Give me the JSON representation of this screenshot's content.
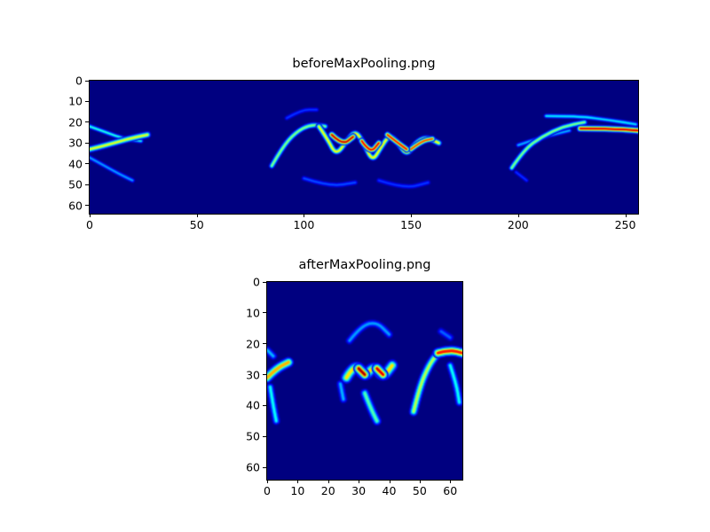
{
  "figure": {
    "background": "#ffffff",
    "text_color": "#000000",
    "axis_color": "#000000",
    "heatmap_min_color": "#000080"
  },
  "chart_data": [
    {
      "type": "heatmap",
      "title": "beforeMaxPooling.png",
      "colormap": "jet",
      "xlabel": "",
      "ylabel": "",
      "x_range": [
        0,
        256
      ],
      "y_range": [
        0,
        64
      ],
      "x_ticks": [
        0,
        50,
        100,
        150,
        200,
        250
      ],
      "y_ticks": [
        0,
        10,
        20,
        30,
        40,
        50,
        60
      ],
      "grid": false,
      "legend": "none",
      "strokes": [
        {
          "points": [
            [
              0,
              22
            ],
            [
              8,
              25
            ],
            [
              16,
              28
            ],
            [
              24,
              29
            ]
          ],
          "width": 1.8,
          "intensity": 0.4
        },
        {
          "points": [
            [
              0,
              33
            ],
            [
              8,
              31
            ],
            [
              18,
              28
            ],
            [
              27,
              26
            ]
          ],
          "width": 2.6,
          "intensity": 0.6
        },
        {
          "points": [
            [
              0,
              37
            ],
            [
              7,
              41
            ],
            [
              14,
              45
            ],
            [
              20,
              48
            ]
          ],
          "width": 1.8,
          "intensity": 0.28
        },
        {
          "points": [
            [
              92,
              18
            ],
            [
              99,
              14
            ],
            [
              106,
              14
            ]
          ],
          "width": 1.8,
          "intensity": 0.18
        },
        {
          "points": [
            [
              85,
              41
            ],
            [
              90,
              32
            ],
            [
              96,
              25
            ],
            [
              103,
              21
            ],
            [
              110,
              22
            ]
          ],
          "width": 2.2,
          "intensity": 0.5
        },
        {
          "points": [
            [
              107,
              22
            ],
            [
              111,
              28
            ],
            [
              115,
              36
            ],
            [
              120,
              29
            ],
            [
              124,
              24
            ],
            [
              128,
              30
            ],
            [
              132,
              39
            ],
            [
              136,
              32
            ],
            [
              140,
              26
            ],
            [
              144,
              30
            ],
            [
              148,
              36
            ],
            [
              152,
              30
            ],
            [
              157,
              27
            ],
            [
              163,
              30
            ]
          ],
          "width": 2.3,
          "intensity": 0.62
        },
        {
          "points": [
            [
              113,
              26
            ],
            [
              118,
              31
            ],
            [
              123,
              27
            ]
          ],
          "width": 2.5,
          "intensity": 0.92
        },
        {
          "points": [
            [
              127,
              29
            ],
            [
              131,
              35
            ],
            [
              135,
              30
            ]
          ],
          "width": 2.3,
          "intensity": 0.88
        },
        {
          "points": [
            [
              139,
              26
            ],
            [
              144,
              30
            ],
            [
              148,
              33
            ]
          ],
          "width": 2.3,
          "intensity": 0.85
        },
        {
          "points": [
            [
              150,
              33
            ],
            [
              155,
              29
            ],
            [
              160,
              28
            ]
          ],
          "width": 2.2,
          "intensity": 0.8
        },
        {
          "points": [
            [
              100,
              47
            ],
            [
              112,
              51
            ],
            [
              124,
              49
            ]
          ],
          "width": 2.0,
          "intensity": 0.2
        },
        {
          "points": [
            [
              135,
              48
            ],
            [
              147,
              52
            ],
            [
              158,
              49
            ]
          ],
          "width": 2.0,
          "intensity": 0.18
        },
        {
          "points": [
            [
              197,
              42
            ],
            [
              203,
              33
            ],
            [
              211,
              27
            ],
            [
              221,
              22
            ],
            [
              231,
              20
            ]
          ],
          "width": 2.2,
          "intensity": 0.5
        },
        {
          "points": [
            [
              213,
              17
            ],
            [
              228,
              17
            ],
            [
              243,
              19
            ],
            [
              255,
              21
            ]
          ],
          "width": 1.8,
          "intensity": 0.35
        },
        {
          "points": [
            [
              200,
              31
            ],
            [
              212,
              27
            ],
            [
              224,
              24
            ]
          ],
          "width": 1.8,
          "intensity": 0.3
        },
        {
          "points": [
            [
              229,
              23
            ],
            [
              242,
              23
            ],
            [
              256,
              24
            ]
          ],
          "width": 2.6,
          "intensity": 0.9
        },
        {
          "points": [
            [
              199,
              44
            ],
            [
              204,
              48
            ]
          ],
          "width": 1.6,
          "intensity": 0.18
        }
      ]
    },
    {
      "type": "heatmap",
      "title": "afterMaxPooling.png",
      "colormap": "jet",
      "xlabel": "",
      "ylabel": "",
      "x_range": [
        0,
        64
      ],
      "y_range": [
        0,
        64
      ],
      "x_ticks": [
        0,
        10,
        20,
        30,
        40,
        50,
        60
      ],
      "y_ticks": [
        0,
        10,
        20,
        30,
        40,
        50,
        60
      ],
      "grid": false,
      "legend": "none",
      "strokes": [
        {
          "points": [
            [
              0,
              31
            ],
            [
              3,
              28
            ],
            [
              7,
              26
            ]
          ],
          "width": 4.0,
          "intensity": 0.7
        },
        {
          "points": [
            [
              1,
              34
            ],
            [
              2,
              40
            ],
            [
              3,
              45
            ]
          ],
          "width": 3.0,
          "intensity": 0.38
        },
        {
          "points": [
            [
              0,
              22
            ],
            [
              2,
              24
            ]
          ],
          "width": 3.0,
          "intensity": 0.3
        },
        {
          "points": [
            [
              26,
              31
            ],
            [
              29,
              26
            ],
            [
              32,
              31
            ],
            [
              35,
              27
            ],
            [
              38,
              31
            ],
            [
              41,
              27
            ]
          ],
          "width": 4.5,
          "intensity": 0.65
        },
        {
          "points": [
            [
              30,
              28
            ],
            [
              32,
              30
            ]
          ],
          "width": 4.0,
          "intensity": 0.95
        },
        {
          "points": [
            [
              36,
              28
            ],
            [
              38,
              30
            ]
          ],
          "width": 4.0,
          "intensity": 0.9
        },
        {
          "points": [
            [
              27,
              19
            ],
            [
              31,
              14
            ],
            [
              36,
              13
            ],
            [
              40,
              17
            ]
          ],
          "width": 3.0,
          "intensity": 0.28
        },
        {
          "points": [
            [
              32,
              36
            ],
            [
              34,
              41
            ],
            [
              36,
              45
            ]
          ],
          "width": 3.5,
          "intensity": 0.45
        },
        {
          "points": [
            [
              24,
              33
            ],
            [
              25,
              38
            ]
          ],
          "width": 3.0,
          "intensity": 0.3
        },
        {
          "points": [
            [
              48,
              42
            ],
            [
              50,
              34
            ],
            [
              53,
              27
            ],
            [
              56,
              23
            ]
          ],
          "width": 3.5,
          "intensity": 0.55
        },
        {
          "points": [
            [
              56,
              23
            ],
            [
              60,
              22
            ],
            [
              64,
              23
            ]
          ],
          "width": 4.0,
          "intensity": 0.85
        },
        {
          "points": [
            [
              60,
              27
            ],
            [
              62,
              33
            ],
            [
              63,
              39
            ]
          ],
          "width": 3.0,
          "intensity": 0.38
        },
        {
          "points": [
            [
              57,
              16
            ],
            [
              60,
              18
            ]
          ],
          "width": 3.0,
          "intensity": 0.22
        }
      ]
    }
  ]
}
